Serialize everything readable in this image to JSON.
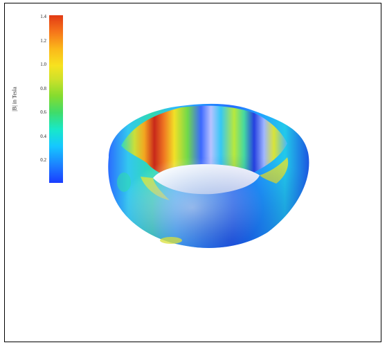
{
  "colorbar": {
    "title": "|B| in Tesla",
    "ticks": [
      "1.4",
      "1.2",
      "1.0",
      "0.8",
      "0.6",
      "0.4",
      "0.2"
    ],
    "tick_values": [
      1.4,
      1.2,
      1.0,
      0.8,
      0.6,
      0.4,
      0.2
    ],
    "range": [
      0.0,
      1.4
    ],
    "colormap": "jet",
    "colors": {
      "low": "#1a3cff",
      "mid": "#3fdc6a",
      "high": "#e23a14"
    }
  },
  "figure": {
    "subject": "torus-surface",
    "border_color": "#000000",
    "background": "#ffffff"
  }
}
